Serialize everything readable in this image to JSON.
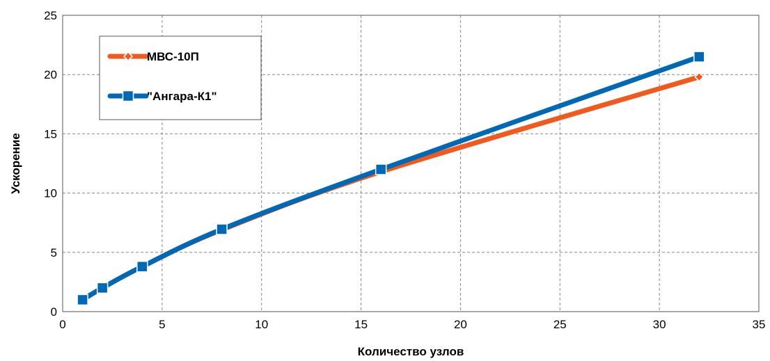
{
  "chart_data": {
    "type": "line",
    "xlabel": "Количество узлов",
    "ylabel": "Ускорение",
    "xlim": [
      0,
      35
    ],
    "ylim": [
      0,
      25
    ],
    "x_ticks": [
      "0",
      "5",
      "10",
      "15",
      "20",
      "25",
      "30",
      "35"
    ],
    "y_ticks": [
      "0",
      "5",
      "10",
      "15",
      "20",
      "25"
    ],
    "grid": true,
    "legend": "top-left",
    "series": [
      {
        "name": "МВС-10П",
        "color": "#f05a1e",
        "marker": "diamond",
        "x": [
          1,
          2,
          4,
          8,
          16,
          32
        ],
        "y": [
          1.0,
          2.0,
          3.8,
          6.9,
          11.8,
          19.8
        ]
      },
      {
        "name": "\"Ангара-К1\"",
        "color": "#0068b4",
        "marker": "square",
        "x": [
          1,
          2,
          4,
          8,
          16,
          32
        ],
        "y": [
          1.0,
          2.0,
          3.8,
          6.95,
          12.0,
          21.5
        ]
      }
    ]
  }
}
